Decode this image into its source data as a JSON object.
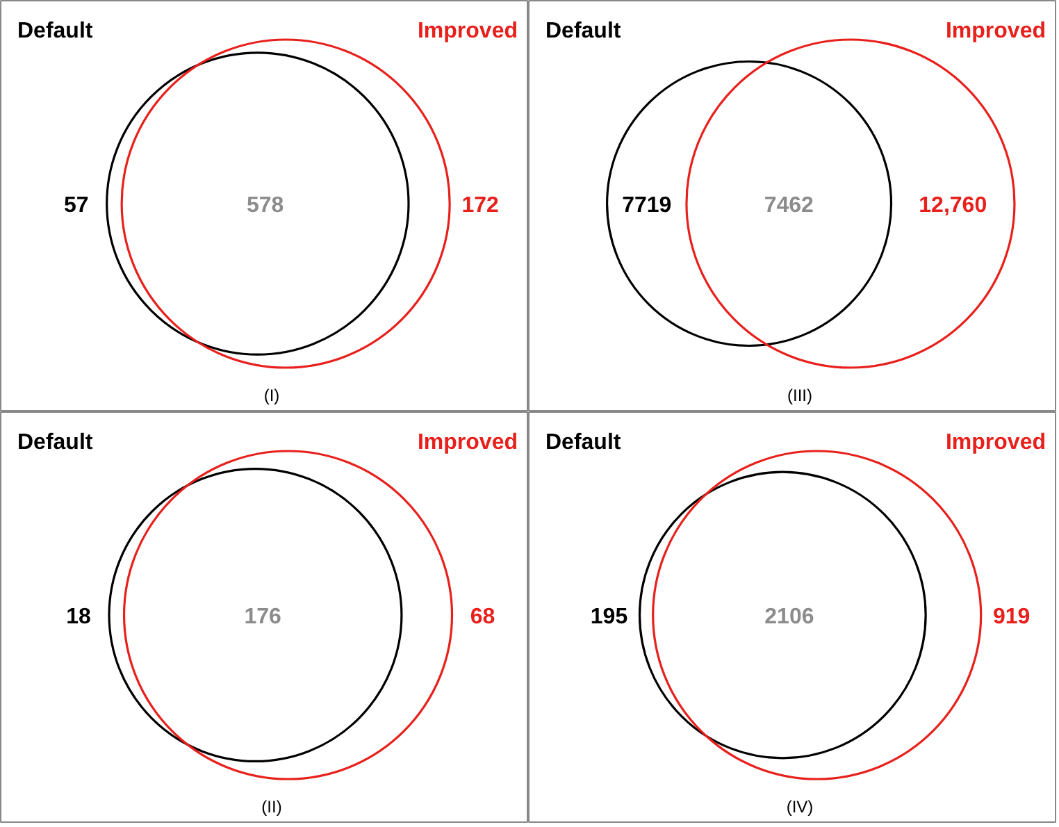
{
  "chart_data": [
    {
      "type": "other",
      "categories": [
        "Default",
        null,
        "Improved"
      ],
      "values": [
        57,
        578,
        172
      ],
      "value_labels": [
        "57",
        "578",
        "172"
      ],
      "colors": [
        "#000000",
        "#8c8c8c",
        "#e8201c"
      ],
      "annotations": [
        "(I)"
      ]
    },
    {
      "type": "other",
      "categories": [
        "Default",
        null,
        "Improved"
      ],
      "values": [
        7719,
        7462,
        12760
      ],
      "value_labels": [
        "7719",
        "7462",
        "12,760"
      ],
      "colors": [
        "#000000",
        "#8c8c8c",
        "#e8201c"
      ],
      "annotations": [
        "(III)"
      ]
    },
    {
      "type": "other",
      "categories": [
        "Default",
        null,
        "Improved"
      ],
      "values": [
        18,
        176,
        68
      ],
      "value_labels": [
        "18",
        "176",
        "68"
      ],
      "colors": [
        "#000000",
        "#8c8c8c",
        "#e8201c"
      ],
      "annotations": [
        "(II)"
      ]
    },
    {
      "type": "other",
      "categories": [
        "Default",
        null,
        "Improved"
      ],
      "values": [
        195,
        2106,
        919
      ],
      "value_labels": [
        "195",
        "2106",
        "919"
      ],
      "colors": [
        "#000000",
        "#8c8c8c",
        "#e8201c"
      ],
      "annotations": [
        "(IV)"
      ]
    }
  ]
}
